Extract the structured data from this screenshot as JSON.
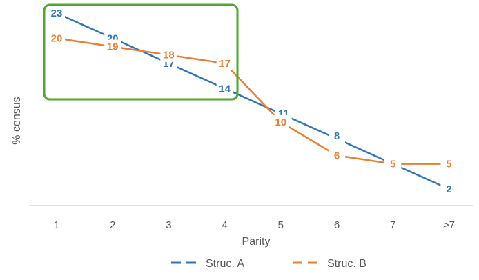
{
  "chart_data": {
    "type": "line",
    "categories": [
      "1",
      "2",
      "3",
      "4",
      "5",
      "6",
      "7",
      ">7"
    ],
    "xlabel": "Parity",
    "ylabel": "% census",
    "ylim": [
      0,
      24
    ],
    "grid": false,
    "legend_position": "bottom",
    "series": [
      {
        "name": "Struc. A",
        "color": "#2E75B6",
        "values": [
          23,
          20,
          17,
          14,
          11,
          8,
          5,
          2
        ]
      },
      {
        "name": "Struc. B",
        "color": "#ED7D31",
        "values": [
          20,
          19,
          18,
          17,
          10,
          6,
          5,
          5
        ]
      }
    ],
    "highlight": {
      "color": "#4EA72E",
      "shape": "rounded-rectangle",
      "categories": [
        "1",
        "4"
      ]
    }
  }
}
